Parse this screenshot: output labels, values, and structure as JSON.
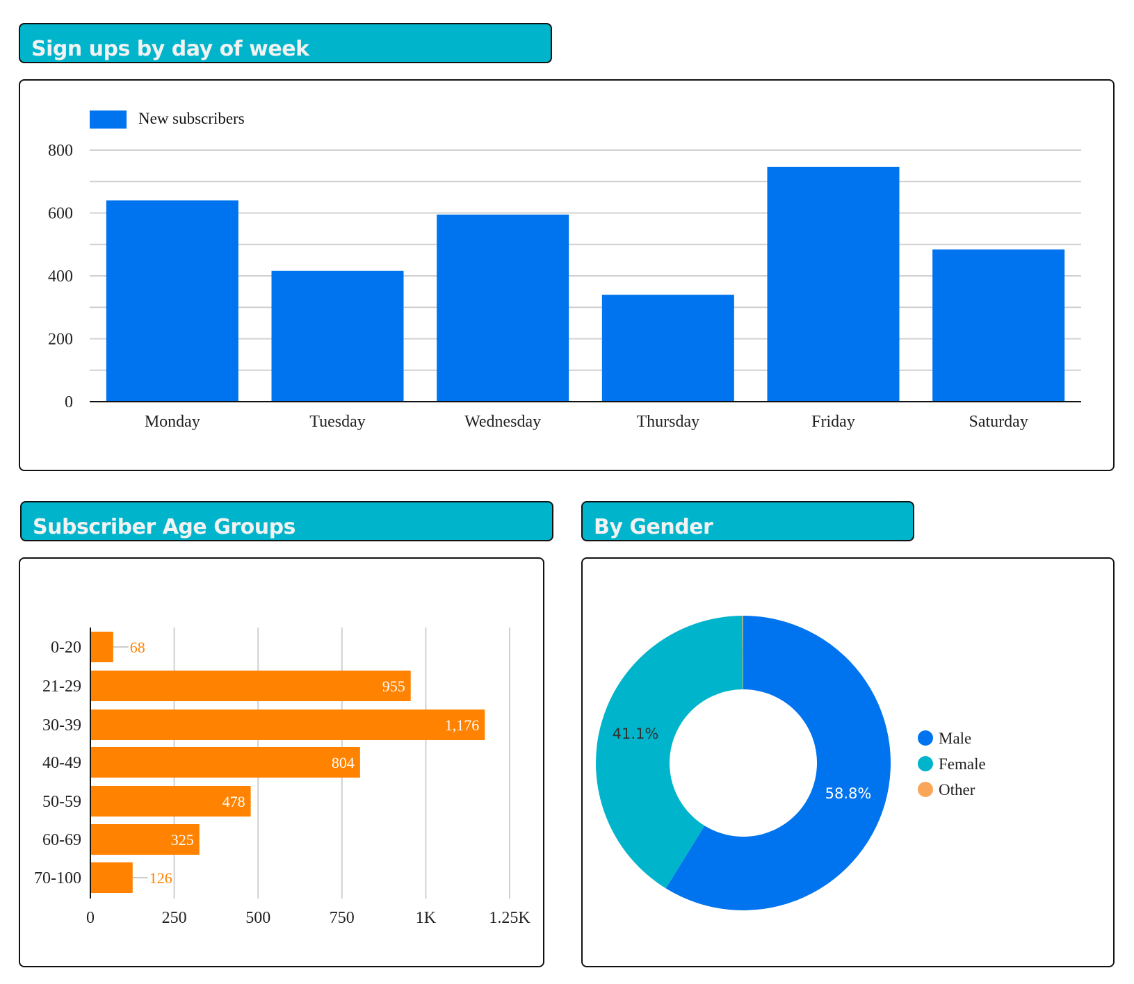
{
  "chart_data": [
    {
      "type": "bar",
      "title": "Sign ups by day of week",
      "legend": "New subscribers",
      "legend_position": "top-left",
      "categories": [
        "Monday",
        "Tuesday",
        "Wednesday",
        "Thursday",
        "Friday",
        "Saturday"
      ],
      "series": [
        {
          "name": "New subscribers",
          "values": [
            640,
            416,
            595,
            340,
            747,
            484
          ]
        }
      ],
      "ylim": [
        0,
        800
      ],
      "yticks": [
        "0",
        "200",
        "400",
        "600",
        "800"
      ],
      "grid": true,
      "color": "#0073ee"
    },
    {
      "type": "bar",
      "orientation": "horizontal",
      "title": "Subscriber Age Groups",
      "categories": [
        "0-20",
        "21-29",
        "30-39",
        "40-49",
        "50-59",
        "60-69",
        "70-100"
      ],
      "values": [
        68,
        955,
        1176,
        804,
        478,
        325,
        126
      ],
      "labels": [
        "68",
        "955",
        "1,176",
        "804",
        "478",
        "325",
        "126"
      ],
      "xlim": [
        0,
        1250
      ],
      "xticks": [
        "0",
        "250",
        "500",
        "750",
        "1K",
        "1.25K"
      ],
      "grid": true,
      "color": "#ff8200"
    },
    {
      "type": "pie",
      "donut": true,
      "title": "By Gender",
      "legend_position": "right",
      "slices": [
        {
          "name": "Male",
          "value": 58.8,
          "label": "58.8%",
          "color": "#0073ee"
        },
        {
          "name": "Female",
          "value": 41.1,
          "label": "41.1%",
          "color": "#00b5cb"
        },
        {
          "name": "Other",
          "value": 0.1,
          "label": "",
          "color": "#f9a65a"
        }
      ]
    }
  ]
}
